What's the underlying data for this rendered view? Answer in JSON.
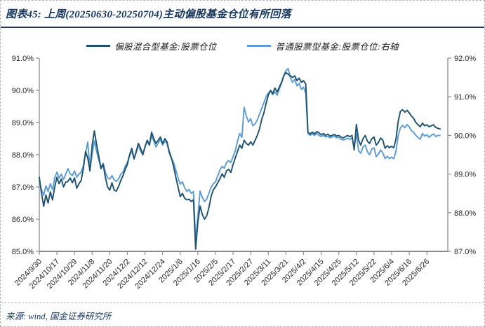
{
  "figure": {
    "title": "图表45: 上周(20250630-20250704)主动偏股基金仓位有所回落",
    "source": "来源: wind, 国金证券研究所",
    "colors": {
      "title": "#17375E",
      "axis_line": "#8c8c8c",
      "tick_text": "#262626"
    }
  },
  "chart_data": {
    "type": "line",
    "title": "上周(20250630-20250704)主动偏股基金仓位有所回落",
    "grid": false,
    "legend_position": "top-center",
    "x_tick_interval_days": 8,
    "x_tick_labels": [
      "2024/9/30",
      "2024/10/17",
      "2024/10/29",
      "2024/11/8",
      "2024/11/20",
      "2024/12/2",
      "2024/12/12",
      "2024/12/24",
      "2025/1/6",
      "2025/1/16",
      "2025/2/5",
      "2025/2/17",
      "2025/2/27",
      "2025/3/11",
      "2025/3/21",
      "2025/4/2",
      "2025/4/15",
      "2025/4/25",
      "2025/5/12",
      "2025/5/22",
      "2025/6/4",
      "2025/6/16",
      "2025/6/26"
    ],
    "left_axis": {
      "min": 85,
      "max": 91,
      "tick_labels": [
        "85.0%",
        "86.0%",
        "87.0%",
        "88.0%",
        "89.0%",
        "90.0%",
        "91.0%"
      ]
    },
    "right_axis": {
      "min": 87,
      "max": 92,
      "tick_labels": [
        "87.0%",
        "88.0%",
        "89.0%",
        "90.0%",
        "91.0%",
        "92.0%"
      ]
    },
    "series": [
      {
        "name": "偏股混合型基金:股票仓位",
        "axis": "left",
        "color": "#1C516F",
        "values": [
          87.3,
          86.8,
          86.4,
          86.75,
          86.5,
          86.85,
          86.6,
          87.0,
          87.3,
          87.1,
          87.25,
          87.0,
          87.15,
          87.17,
          87.28,
          87.13,
          87.28,
          86.96,
          87.1,
          87.2,
          87.57,
          88.1,
          87.9,
          87.5,
          88.3,
          88.74,
          88.33,
          87.95,
          87.57,
          87.7,
          87.3,
          87.0,
          86.9,
          87.13,
          86.9,
          86.87,
          87.02,
          87.2,
          87.35,
          87.55,
          87.7,
          88.0,
          88.2,
          87.87,
          88.1,
          88.35,
          88.2,
          88.0,
          88.25,
          88.45,
          88.3,
          88.7,
          88.5,
          88.35,
          88.45,
          88.55,
          88.35,
          88.5,
          88.4,
          88.1,
          87.9,
          87.63,
          87.3,
          87.0,
          86.7,
          86.8,
          86.65,
          86.6,
          86.62,
          86.55,
          86.6,
          85.07,
          85.9,
          86.41,
          86.15,
          86.0,
          86.1,
          86.35,
          86.7,
          86.91,
          87.0,
          87.13,
          87.25,
          87.41,
          87.3,
          87.5,
          87.55,
          87.45,
          87.7,
          87.9,
          88.1,
          88.3,
          88.2,
          88.45,
          88.35,
          88.3,
          88.4,
          88.3,
          88.45,
          88.6,
          88.8,
          89.1,
          89.3,
          89.6,
          89.85,
          90.0,
          89.9,
          90.07,
          89.95,
          90.1,
          90.25,
          90.45,
          90.55,
          90.5,
          90.45,
          90.4,
          90.45,
          90.3,
          90.38,
          90.25,
          90.3,
          90.2,
          88.7,
          88.65,
          88.7,
          88.65,
          88.72,
          88.68,
          88.62,
          88.66,
          88.6,
          88.64,
          88.58,
          88.6,
          88.63,
          88.58,
          88.6,
          88.55,
          88.52,
          88.56,
          88.6,
          88.56,
          88.6,
          88.15,
          88.94,
          88.45,
          88.3,
          88.5,
          88.6,
          88.42,
          88.35,
          88.5,
          88.55,
          88.3,
          88.38,
          88.52,
          88.45,
          88.2,
          88.28,
          88.22,
          88.26,
          88.22,
          88.5,
          89.05,
          89.35,
          89.4,
          89.32,
          89.38,
          89.3,
          89.2,
          89.13,
          89.0,
          88.93,
          88.87,
          88.98,
          88.9,
          88.93,
          88.87,
          88.9,
          88.93,
          88.85,
          88.82,
          88.8
        ]
      },
      {
        "name": "普通股票型基金:股票仓位:右轴",
        "axis": "right",
        "color": "#5B9BD5",
        "values": [
          88.83,
          88.6,
          88.45,
          88.7,
          88.55,
          88.75,
          88.6,
          88.9,
          89.05,
          88.9,
          89.0,
          88.86,
          89.0,
          89.14,
          89.01,
          88.96,
          89.08,
          88.92,
          89.0,
          89.05,
          89.22,
          89.54,
          89.83,
          89.14,
          89.5,
          89.86,
          89.59,
          89.36,
          89.17,
          89.28,
          89.05,
          88.9,
          88.87,
          88.96,
          88.85,
          88.81,
          88.87,
          89.0,
          89.05,
          89.2,
          89.3,
          89.47,
          89.6,
          89.4,
          89.55,
          89.75,
          89.6,
          89.5,
          89.7,
          89.85,
          89.75,
          90.0,
          89.85,
          89.7,
          89.8,
          89.9,
          89.75,
          89.85,
          89.8,
          89.55,
          89.4,
          89.3,
          89.1,
          88.9,
          88.74,
          88.8,
          88.65,
          88.55,
          88.6,
          88.5,
          88.55,
          87.27,
          87.9,
          88.56,
          88.4,
          88.29,
          88.35,
          88.5,
          88.65,
          88.75,
          88.8,
          88.95,
          89.1,
          89.2,
          89.15,
          89.3,
          89.35,
          89.3,
          89.45,
          89.6,
          89.85,
          90.05,
          89.95,
          90.73,
          90.5,
          90.35,
          90.43,
          90.25,
          90.3,
          90.4,
          90.55,
          90.7,
          90.85,
          91.0,
          91.1,
          91.15,
          91.05,
          91.13,
          91.04,
          91.2,
          91.35,
          91.55,
          91.68,
          91.73,
          91.5,
          91.37,
          91.45,
          91.28,
          91.35,
          91.19,
          91.25,
          91.09,
          90.05,
          90.0,
          90.04,
          90.0,
          90.05,
          90.0,
          89.97,
          90.0,
          89.96,
          89.98,
          89.94,
          89.96,
          89.98,
          89.94,
          89.95,
          89.9,
          89.88,
          89.9,
          89.93,
          89.9,
          89.93,
          89.7,
          90.04,
          89.6,
          89.54,
          89.7,
          89.75,
          89.58,
          89.5,
          89.65,
          89.68,
          89.45,
          89.52,
          89.62,
          89.55,
          89.4,
          89.46,
          89.4,
          89.44,
          89.4,
          89.6,
          90.0,
          90.2,
          90.26,
          90.2,
          90.28,
          90.22,
          90.12,
          90.08,
          90.0,
          89.95,
          89.9,
          90.05,
          89.98,
          90.02,
          89.95,
          90.0,
          90.04,
          89.97,
          90.0,
          90.0
        ]
      }
    ]
  }
}
